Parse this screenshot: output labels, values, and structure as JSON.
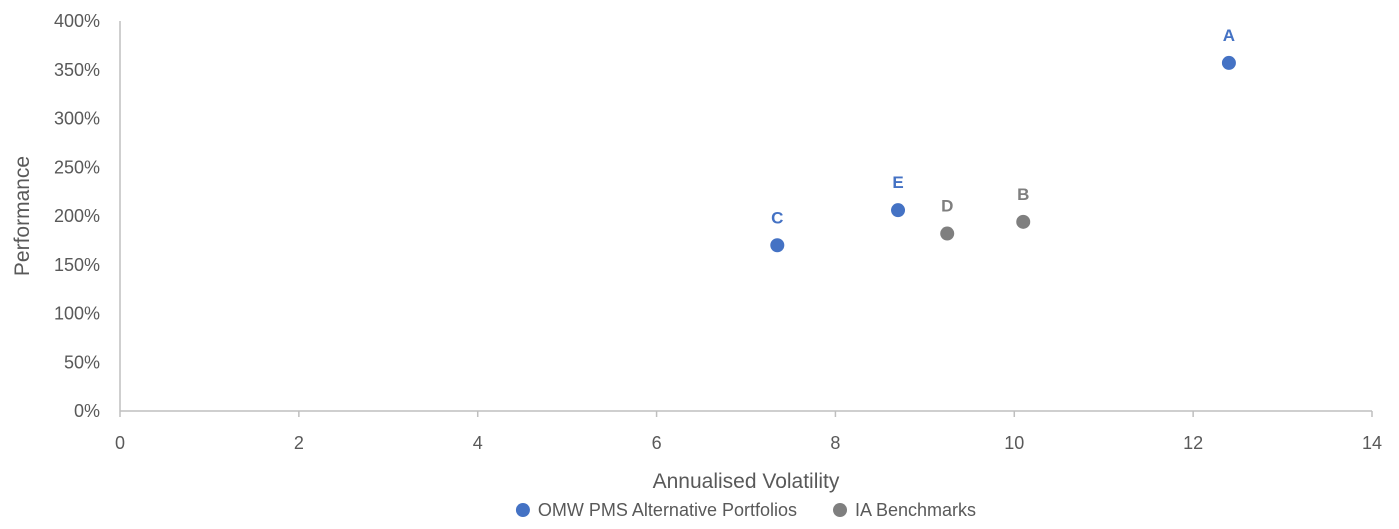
{
  "chart_data": {
    "type": "scatter",
    "title": "",
    "xlabel": "Annualised Volatility",
    "ylabel": "Performance",
    "xlim": [
      0,
      14
    ],
    "ylim": [
      0,
      400
    ],
    "x_ticks": [
      0,
      2,
      4,
      6,
      8,
      10,
      12,
      14
    ],
    "y_ticks": [
      0,
      50,
      100,
      150,
      200,
      250,
      300,
      350,
      400
    ],
    "y_tick_labels": [
      "0%",
      "50%",
      "100%",
      "150%",
      "200%",
      "250%",
      "300%",
      "350%",
      "400%"
    ],
    "grid": false,
    "legend_position": "bottom",
    "series": [
      {
        "name": "OMW PMS Alternative Portfolios",
        "color": "#4472C4",
        "points": [
          {
            "label": "A",
            "x": 12.4,
            "y": 357
          },
          {
            "label": "C",
            "x": 7.35,
            "y": 170
          },
          {
            "label": "E",
            "x": 8.7,
            "y": 206
          }
        ]
      },
      {
        "name": "IA Benchmarks",
        "color": "#7F7F7F",
        "points": [
          {
            "label": "D",
            "x": 9.25,
            "y": 182
          },
          {
            "label": "B",
            "x": 10.1,
            "y": 194
          }
        ]
      }
    ]
  }
}
